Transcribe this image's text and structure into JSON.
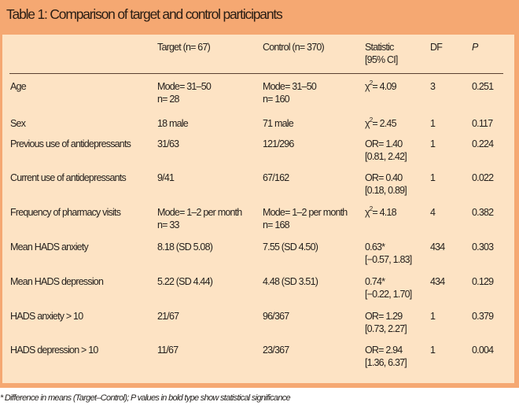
{
  "table": {
    "title": "Table 1: Comparison of target and control participants",
    "headers": {
      "label": "",
      "target": "Target (n= 67)",
      "control": "Control (n= 370)",
      "statistic_line1": "Statistic",
      "statistic_line2": "[95% CI]",
      "df": "DF",
      "p": "P"
    },
    "rows": [
      {
        "label": "Age",
        "target_1": "Mode= 31–50",
        "target_2": "n= 28",
        "control_1": "Mode= 31–50",
        "control_2": "n= 160",
        "stat_prefix": "χ",
        "stat_sup": "2",
        "stat_1": "= 4.09",
        "stat_2": "",
        "df": "3",
        "p": "0.251"
      },
      {
        "label": "Sex",
        "target_1": "18 male",
        "target_2": "",
        "control_1": "71 male",
        "control_2": "",
        "stat_prefix": "χ",
        "stat_sup": "2",
        "stat_1": "= 2.45",
        "stat_2": "",
        "df": "1",
        "p": "0.117"
      },
      {
        "label": "Previous use of antidepressants",
        "target_1": "31/63",
        "target_2": "",
        "control_1": "121/296",
        "control_2": "",
        "stat_prefix": "",
        "stat_sup": "",
        "stat_1": "OR= 1.40",
        "stat_2": "[0.81, 2.42]",
        "df": "1",
        "p": "0.224"
      },
      {
        "label": "Current use of antidepressants",
        "target_1": "9/41",
        "target_2": "",
        "control_1": "67/162",
        "control_2": "",
        "stat_prefix": "",
        "stat_sup": "",
        "stat_1": "OR= 0.40",
        "stat_2": "[0.18, 0.89]",
        "df": "1",
        "p": "0.022"
      },
      {
        "label": "Frequency of pharmacy visits",
        "target_1": "Mode= 1–2 per month",
        "target_2": "n= 33",
        "control_1": "Mode= 1–2 per month",
        "control_2": "n= 168",
        "stat_prefix": "χ",
        "stat_sup": "2",
        "stat_1": "= 4.18",
        "stat_2": "",
        "df": "4",
        "p": "0.382"
      },
      {
        "label": "Mean HADS anxiety",
        "target_1": "8.18 (SD 5.08)",
        "target_2": "",
        "control_1": "7.55 (SD 4.50)",
        "control_2": "",
        "stat_prefix": "",
        "stat_sup": "",
        "stat_1": "0.63*",
        "stat_2": "[−0.57, 1.83]",
        "df": "434",
        "p": "0.303"
      },
      {
        "label": "Mean HADS depression",
        "target_1": "5.22 (SD 4.44)",
        "target_2": "",
        "control_1": "4.48 (SD 3.51)",
        "control_2": "",
        "stat_prefix": "",
        "stat_sup": "",
        "stat_1": "0.74*",
        "stat_2": "[−0.22, 1.70]",
        "df": "434",
        "p": "0.129"
      },
      {
        "label": "HADS anxiety > 10",
        "target_1": "21/67",
        "target_2": "",
        "control_1": "96/367",
        "control_2": "",
        "stat_prefix": "",
        "stat_sup": "",
        "stat_1": "OR= 1.29",
        "stat_2": "[0.73, 2.27]",
        "df": "1",
        "p": "0.379"
      },
      {
        "label": "HADS depression > 10",
        "target_1": "11/67",
        "target_2": "",
        "control_1": "23/367",
        "control_2": "",
        "stat_prefix": "",
        "stat_sup": "",
        "stat_1": "OR= 2.94",
        "stat_2": "[1.36, 6.37]",
        "df": "1",
        "p": "0.004"
      }
    ],
    "footnote": "* Difference in means (Target–Control); P values in bold type show statistical significance"
  },
  "colors": {
    "frame": "#f5a872",
    "panel": "#fde3c4",
    "text": "#231f1c"
  }
}
